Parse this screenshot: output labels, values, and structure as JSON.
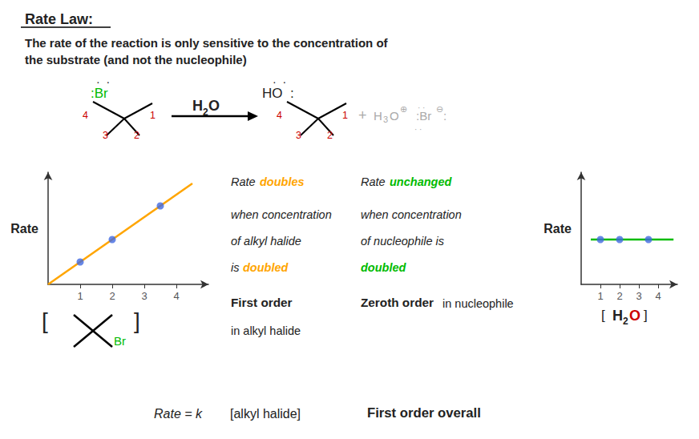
{
  "title": "Rate Law:",
  "subtitle": "The rate of the reaction is only sensitive to the concentration of\nthe substrate (and not the nucleophile)",
  "annotations": [
    {
      "text": "·  ·"
    },
    {
      "text": ":Br",
      "color": "#00BB00"
    },
    {
      "text": "4",
      "color": "#CC0000"
    },
    {
      "text": "3",
      "color": "#CC0000"
    },
    {
      "text": "2",
      "color": "#CC0000"
    },
    {
      "text": "1",
      "color": "#CC0000"
    },
    {
      "text": "H"
    },
    {
      "text": "2"
    },
    {
      "text": "O"
    },
    {
      "text": "·  ·"
    },
    {
      "text": "HO"
    },
    {
      "text": ":"
    },
    {
      "text": "4",
      "color": "#CC0000"
    },
    {
      "text": "3",
      "color": "#CC0000"
    },
    {
      "text": "2",
      "color": "#CC0000"
    },
    {
      "text": "1",
      "color": "#CC0000"
    },
    {
      "text": "+",
      "color": "#AAAAAA"
    },
    {
      "text": "H",
      "color": "#AAAAAA"
    },
    {
      "text": "3",
      "color": "#AAAAAA"
    },
    {
      "text": "O",
      "color": "#AAAAAA"
    },
    {
      "text": "⊕",
      "color": "#AAAAAA"
    },
    {
      "text": "· ·",
      "color": "#AAAAAA"
    },
    {
      "text": "· ·",
      "color": "#AAAAAA"
    },
    {
      "text": ":Br",
      "color": "#AAAAAA"
    },
    {
      "text": "⊖",
      "color": "#AAAAAA"
    },
    {
      "text": ":",
      "color": "#AAAAAA"
    },
    {
      "text": "Rate = k"
    },
    {
      "text": "[alkyl halide]"
    },
    {
      "text": "First order overall"
    }
  ],
  "chart_data": [
    {
      "type": "line",
      "ylabel": "Rate",
      "xlabel": [
        {
          "text": "["
        },
        {
          "text": "Br",
          "color": "#00BB00"
        },
        {
          "text": "]"
        }
      ],
      "xlim": [
        0,
        5
      ],
      "ylim": [
        0,
        5
      ],
      "xticks": [
        1,
        2,
        3,
        4
      ],
      "tick_labels": "x",
      "grid": false,
      "series": [
        {
          "type": "line",
          "color": "#FFA500",
          "x": [
            0,
            4.5
          ],
          "values": [
            0,
            4.5
          ]
        },
        {
          "type": "scatter",
          "color": "#4169E1",
          "x": [
            1,
            2,
            3.5
          ],
          "values": [
            1,
            2,
            3.5
          ]
        }
      ],
      "annotations": [
        {
          "text": "Rate"
        },
        {
          "text": "doubles",
          "color": "#FFA500"
        },
        {
          "text": "when concentration"
        },
        {
          "text": "of alkyl halide"
        },
        {
          "text": "is"
        },
        {
          "text": "doubled",
          "color": "#FFA500"
        },
        {
          "text": "First order"
        },
        {
          "text": "in alkyl halide"
        }
      ]
    },
    {
      "type": "line",
      "ylabel": "Rate",
      "xlabel": [
        {
          "text": "["
        },
        {
          "text": "H"
        },
        {
          "text": "2"
        },
        {
          "text": "O",
          "color": "#CC0000"
        },
        {
          "text": "]"
        }
      ],
      "xlim": [
        0,
        5
      ],
      "ylim": [
        0,
        3
      ],
      "xticks": [
        1,
        2,
        3,
        4
      ],
      "tick_labels": "x",
      "grid": false,
      "series": [
        {
          "type": "line",
          "color": "#00BB00",
          "x": [
            0.5,
            4.8
          ],
          "values": [
            1.2,
            1.2
          ]
        },
        {
          "type": "scatter",
          "color": "#4169E1",
          "x": [
            1,
            2,
            3.5
          ],
          "values": [
            1.2,
            1.2,
            1.2
          ]
        }
      ],
      "annotations": [
        {
          "text": "Rate"
        },
        {
          "text": "unchanged",
          "color": "#00BB00"
        },
        {
          "text": "when concentration"
        },
        {
          "text": "of nucleophile is"
        },
        {
          "text": "doubled",
          "color": "#00BB00"
        },
        {
          "text": "Zeroth order"
        },
        {
          "text": "in nucleophile"
        }
      ]
    }
  ]
}
